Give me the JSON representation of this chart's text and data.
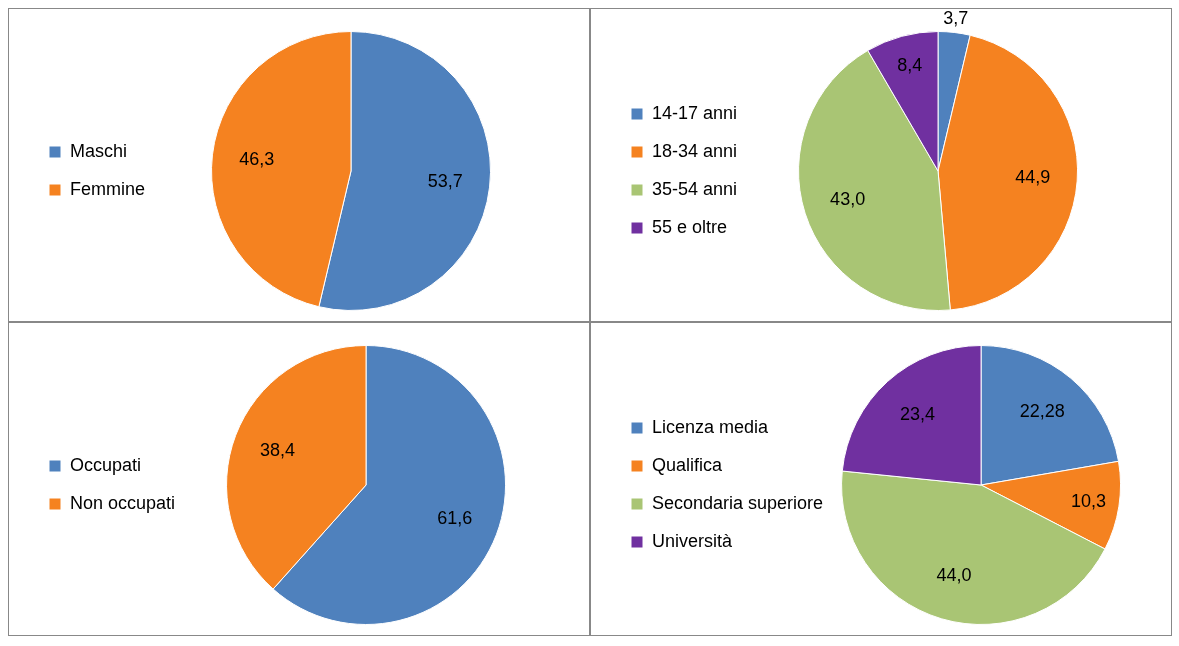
{
  "chart_data": [
    {
      "type": "pie",
      "categories": [
        "Maschi",
        "Femmine"
      ],
      "values": [
        53.7,
        46.3
      ],
      "colors": [
        "#4f81bd",
        "#f58220"
      ],
      "value_labels": [
        "53,7",
        "46,3"
      ],
      "legend": "left"
    },
    {
      "type": "pie",
      "categories": [
        "14-17 anni",
        "18-34 anni",
        "35-54 anni",
        "55 e oltre"
      ],
      "values": [
        3.7,
        44.9,
        43.0,
        8.4
      ],
      "colors": [
        "#4f81bd",
        "#f58220",
        "#a9c574",
        "#7030a0"
      ],
      "value_labels": [
        "3,7",
        "44,9",
        "43,0",
        "8,4"
      ],
      "legend": "left"
    },
    {
      "type": "pie",
      "categories": [
        "Occupati",
        "Non occupati"
      ],
      "values": [
        61.6,
        38.4
      ],
      "colors": [
        "#4f81bd",
        "#f58220"
      ],
      "value_labels": [
        "61,6",
        "38,4"
      ],
      "legend": "left"
    },
    {
      "type": "pie",
      "categories": [
        "Licenza media",
        "Qualifica",
        "Secondaria superiore",
        "Università"
      ],
      "values": [
        22.28,
        10.3,
        44.0,
        23.4
      ],
      "colors": [
        "#4f81bd",
        "#f58220",
        "#a9c574",
        "#7030a0"
      ],
      "value_labels": [
        "22,28",
        "10,3",
        "44,0",
        "23,4"
      ],
      "legend": "left"
    }
  ]
}
